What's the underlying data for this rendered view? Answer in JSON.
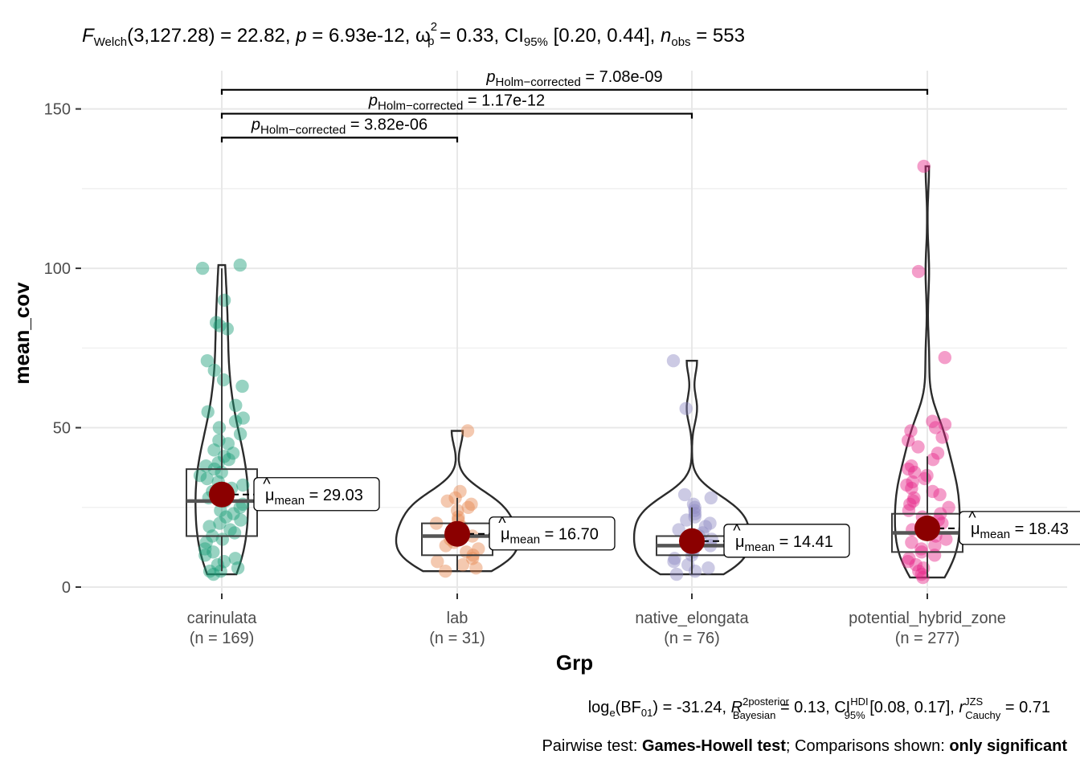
{
  "chart_data": {
    "type": "violin-box-scatter",
    "subtitle": {
      "lhs": "F",
      "lhs_sub": "Welch",
      "statistic_text": "(3,127.28) = 22.82, ",
      "p_symbol": "p",
      "p_text": " = 6.93e-12, ",
      "effect_symbol": "ω",
      "effect_sup": "2",
      "effect_sub": "p",
      "effect_text": " = 0.33, CI",
      "ci_sub": "95%",
      "ci_text": " [0.20, 0.44], ",
      "n_symbol": "n",
      "n_sub": "obs",
      "n_text": " = 553"
    },
    "xlabel": "Grp",
    "ylabel": "mean_cov",
    "ylim": [
      0,
      162
    ],
    "yticks": [
      0,
      50,
      100,
      150
    ],
    "categories": [
      "carinulata",
      "lab",
      "native_elongata",
      "potential_hybrid_zone"
    ],
    "counts": [
      "(n = 169)",
      "(n = 31)",
      "(n = 76)",
      "(n = 277)"
    ],
    "colors": [
      "#1b9e77",
      "#e7884f",
      "#8f8ac4",
      "#e7298a"
    ],
    "groups": [
      {
        "name": "carinulata",
        "mean": 29.03,
        "mean_label_text": " = 29.03",
        "box": {
          "q1": 16,
          "median": 27,
          "q3": 37,
          "lower_whisker": 5,
          "upper_whisker": 100
        },
        "points": [
          101,
          100,
          90,
          83,
          82,
          81,
          71,
          68,
          65,
          63,
          57,
          55,
          53,
          52,
          50,
          48,
          46,
          45,
          43,
          42,
          41,
          40,
          39,
          38,
          37,
          36,
          35,
          34,
          33,
          32,
          31,
          30,
          29,
          28,
          27,
          26,
          25,
          24,
          23,
          22,
          21,
          20,
          19,
          18,
          17,
          16,
          15,
          14,
          12,
          11,
          10,
          9,
          8,
          7,
          6,
          5,
          5,
          4
        ]
      },
      {
        "name": "lab",
        "mean": 16.7,
        "mean_label_text": " = 16.70",
        "box": {
          "q1": 10,
          "median": 16,
          "q3": 20,
          "lower_whisker": 5,
          "upper_whisker": 28
        },
        "points": [
          49,
          30,
          28,
          27,
          26,
          25,
          24,
          22,
          21,
          20,
          19,
          18,
          17,
          16,
          15,
          14,
          13,
          12,
          11,
          10,
          9,
          8,
          7,
          6,
          5
        ]
      },
      {
        "name": "native_elongata",
        "mean": 14.41,
        "mean_label_text": " = 14.41",
        "box": {
          "q1": 10,
          "median": 13,
          "q3": 16,
          "lower_whisker": 4,
          "upper_whisker": 25
        },
        "points": [
          71,
          56,
          29,
          28,
          26,
          25,
          24,
          23,
          22,
          21,
          20,
          19,
          18,
          17,
          16,
          15,
          14,
          13,
          12,
          11,
          10,
          9,
          8,
          7,
          6,
          5,
          4
        ]
      },
      {
        "name": "potential_hybrid_zone",
        "mean": 18.43,
        "mean_label_text": " = 18.43",
        "box": {
          "q1": 11,
          "median": 17,
          "q3": 23,
          "lower_whisker": 3,
          "upper_whisker": 41
        },
        "points": [
          132,
          99,
          72,
          52,
          51,
          50,
          49,
          47,
          46,
          44,
          42,
          40,
          38,
          37,
          36,
          35,
          34,
          33,
          32,
          31,
          30,
          29,
          28,
          27,
          26,
          25,
          24,
          23,
          22,
          21,
          20,
          19,
          18,
          17,
          16,
          15,
          14,
          13,
          12,
          11,
          10,
          9,
          8,
          7,
          6,
          5,
          4,
          3
        ]
      }
    ],
    "pairwise": [
      {
        "from": 0,
        "to": 3,
        "y": 156,
        "label_p": "p",
        "label_sub": "Holm−corrected",
        "label_text": " = 7.08e-09"
      },
      {
        "from": 0,
        "to": 2,
        "y": 148.5,
        "label_p": "p",
        "label_sub": "Holm−corrected",
        "label_text": " = 1.17e-12"
      },
      {
        "from": 0,
        "to": 1,
        "y": 141,
        "label_p": "p",
        "label_sub": "Holm−corrected",
        "label_text": " = 3.82e-06"
      }
    ],
    "caption": {
      "line1_a": "log",
      "line1_a_sub": "e",
      "line1_b": "(BF",
      "line1_b_sub": "01",
      "line1_c": ") = -31.24, ",
      "line1_r2": "R",
      "line1_r2_sup": "2",
      "line1_r2_sub_top": "posterior",
      "line1_r2_sub": "Bayesian",
      "line1_d": " = 0.13, CI",
      "line1_hdi_sup": "HDI",
      "line1_hdi_sub": "95%",
      "line1_e": " [0.08, 0.17], ",
      "line1_r": "r",
      "line1_r_sup": "JZS",
      "line1_r_sub": "Cauchy",
      "line1_f": " = 0.71",
      "line2_a": "Pairwise test: ",
      "line2_b": "Games-Howell test",
      "line2_c": "; Comparisons shown: ",
      "line2_d": "only significant"
    },
    "mean_symbol": "μ",
    "mean_sub": "mean"
  }
}
